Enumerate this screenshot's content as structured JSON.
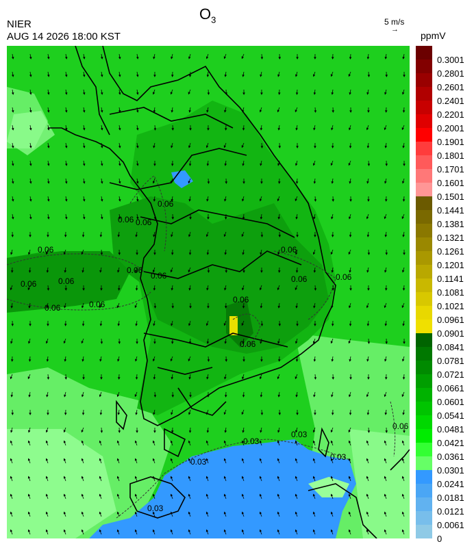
{
  "header": {
    "agency": "NIER",
    "datetime": "AUG 14 2026 18:00 KST",
    "title_main": "O",
    "title_sub": "3",
    "vector_scale": "5 m/s",
    "vector_arrow": "→",
    "unit": "ppmV"
  },
  "colorbar": {
    "colors": [
      "#6b0000",
      "#820000",
      "#990000",
      "#b00000",
      "#c80000",
      "#e00000",
      "#ff0000",
      "#ff3c3c",
      "#ff5a5a",
      "#ff7878",
      "#ff9696",
      "#6b5a00",
      "#7a6900",
      "#8a7800",
      "#9a8800",
      "#aa9800",
      "#b9a800",
      "#c9b800",
      "#d8c800",
      "#e8d800",
      "#f0e000",
      "#006400",
      "#007800",
      "#008a00",
      "#009e00",
      "#00b200",
      "#00c400",
      "#00d800",
      "#00ec00",
      "#33ff33",
      "#66ff66",
      "#3399ff",
      "#4aa6f5",
      "#61b2f0",
      "#78beeb",
      "#8fcae6"
    ],
    "labels": [
      "0.3001",
      "0.2801",
      "0.2601",
      "0.2401",
      "0.2201",
      "0.2001",
      "0.1901",
      "0.1801",
      "0.1701",
      "0.1601",
      "0.1501",
      "0.1441",
      "0.1381",
      "0.1321",
      "0.1261",
      "0.1201",
      "0.1141",
      "0.1081",
      "0.1021",
      "0.0961",
      "0.0901",
      "0.0841",
      "0.0781",
      "0.0721",
      "0.0661",
      "0.0601",
      "0.0541",
      "0.0481",
      "0.0421",
      "0.0361",
      "0.0301",
      "0.0241",
      "0.0181",
      "0.0121",
      "0.0061",
      "0"
    ]
  },
  "map": {
    "contour_labels": [
      "0.06",
      "0.06",
      "0.06",
      "0.06",
      "0.06",
      "0.06",
      "0.06",
      "0.06",
      "0.06",
      "0.06",
      "0.06",
      "0.06",
      "0.06",
      "0.06",
      "0.06",
      "0.03",
      "0.03",
      "0.03",
      "0.03",
      "0.03",
      "0.06"
    ],
    "colors": {
      "sea_green": "#22cc22",
      "land_green": "#11b811",
      "dark_green": "#0a9a0a",
      "light_green": "#66ee66",
      "pale_green": "#99ff99",
      "blue": "#3399ff",
      "yellow": "#e8e000",
      "boundary": "#000000",
      "subboundary": "#cfcfcf"
    }
  }
}
